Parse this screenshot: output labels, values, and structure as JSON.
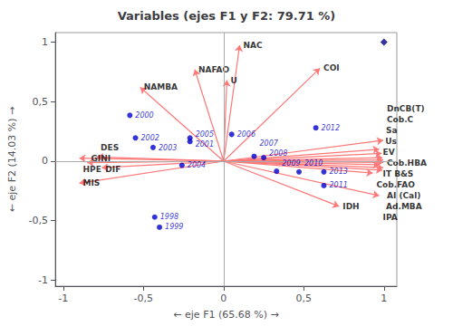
{
  "chart_data": {
    "type": "biplot",
    "title": "Variables (ejes F1 y F2: 79.71 %)",
    "xlabel": "← eje F1 (65.68 %) →",
    "ylabel": "← eje F2 (14.03 %) →",
    "xlim": [
      -1.05,
      1.08
    ],
    "ylim": [
      -1.05,
      1.08
    ],
    "xticks": [
      -1,
      {
        "value": -0.5,
        "label": "-0,5"
      },
      0,
      {
        "value": 0.5,
        "label": "0,5"
      },
      1
    ],
    "yticks": [
      -1,
      {
        "value": -0.5,
        "label": "-0,5"
      },
      0,
      {
        "value": 0.5,
        "label": "0,5"
      },
      1
    ],
    "grid": false,
    "series": [
      {
        "type": "arrow",
        "color": "#FF7777",
        "labels": [
          "NAC",
          "NAFAO",
          "U",
          "NAMBA",
          "COI",
          "EV",
          "Us",
          "Ad.MBA",
          "Cob.C",
          "AI (Cal)",
          "IT B&S",
          "Cob.HBA",
          "Sa",
          "Cob.FAO",
          "IPA",
          "IDH",
          "HPE",
          "DES",
          "GINI",
          "DIF",
          "MIS",
          "DnCB(T)"
        ],
        "x": [
          0.1,
          -0.18,
          0.02,
          -0.52,
          0.6,
          0.97,
          0.985,
          0.99,
          0.995,
          0.995,
          0.97,
          0.995,
          0.99,
          0.93,
          0.97,
          0.72,
          -0.9,
          -0.79,
          -0.85,
          -0.76,
          -0.9,
          0.995
        ],
        "y": [
          0.975,
          0.77,
          0.68,
          0.62,
          0.78,
          0.1,
          0.065,
          0.03,
          0.01,
          -0.01,
          -0.03,
          -0.055,
          -0.075,
          -0.1,
          -0.29,
          -0.38,
          0.025,
          0.035,
          -0.012,
          -0.055,
          -0.185,
          0.175
        ]
      },
      {
        "type": "scatter",
        "color": "#0000CD",
        "marker": "circle",
        "labels": [
          "1998",
          "1999",
          "2000",
          "2001",
          "2002",
          "2003",
          "2004",
          "2005",
          "2006",
          "2007",
          "2008",
          "2009",
          "2010",
          "2011",
          "2012",
          "2013"
        ],
        "x": [
          -0.43,
          -0.4,
          -0.585,
          -0.21,
          -0.55,
          -0.44,
          -0.26,
          -0.21,
          0.05,
          0.19,
          0.25,
          0.33,
          0.47,
          0.625,
          0.575,
          0.625
        ],
        "y": [
          -0.47,
          -0.555,
          0.385,
          0.165,
          0.195,
          0.115,
          -0.035,
          0.195,
          0.225,
          0.04,
          0.03,
          -0.085,
          -0.09,
          -0.205,
          0.28,
          -0.09
        ]
      },
      {
        "type": "scatter",
        "color": "#000080",
        "marker": "diamond",
        "x": [
          1.0
        ],
        "y": [
          1.0
        ]
      }
    ]
  }
}
